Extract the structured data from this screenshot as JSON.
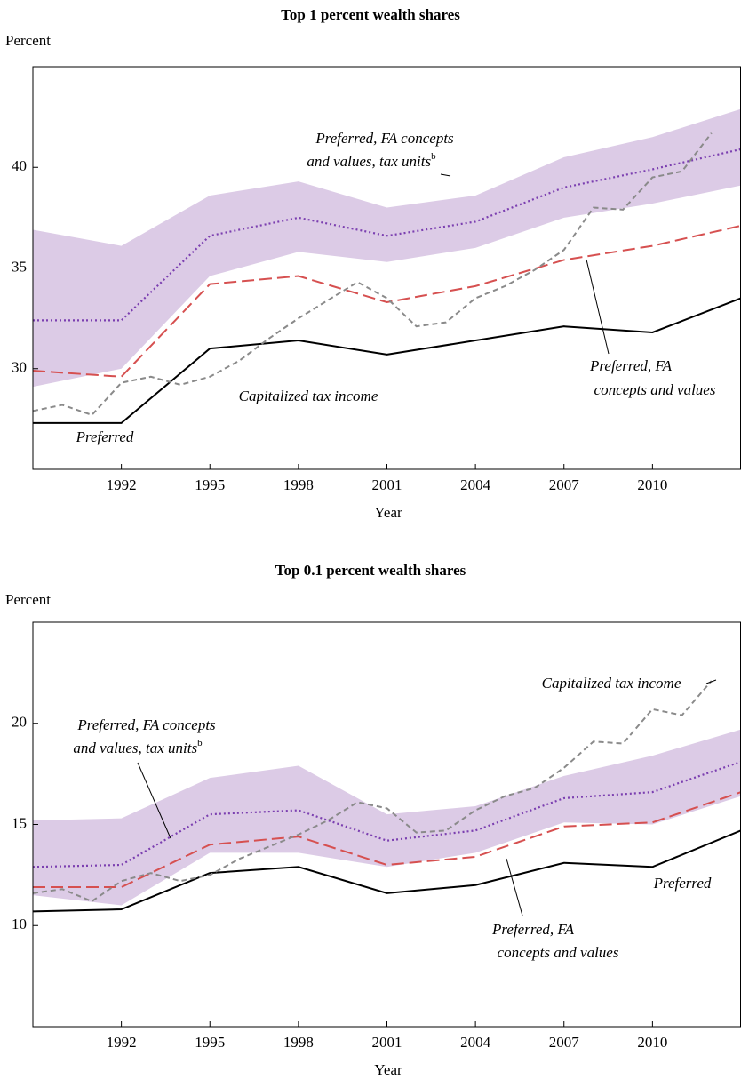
{
  "chart_data": [
    {
      "type": "line",
      "title": "Top 1 percent wealth shares",
      "ylabel": "Percent",
      "xlabel": "Year",
      "x": [
        1989,
        1992,
        1995,
        1998,
        2001,
        2004,
        2007,
        2010,
        2013
      ],
      "xlim": [
        1989,
        2013
      ],
      "ylim": [
        25,
        45
      ],
      "xticks": [
        1992,
        1995,
        1998,
        2001,
        2004,
        2007,
        2010
      ],
      "yticks": [
        30,
        35,
        40
      ],
      "series": [
        {
          "label": [
            "Preferred"
          ],
          "color": "#000000",
          "style": "solid",
          "values": [
            27.3,
            27.3,
            31.0,
            31.4,
            30.7,
            31.4,
            32.1,
            31.8,
            33.5
          ]
        },
        {
          "label": [
            "Preferred, FA",
            "concepts and values"
          ],
          "color": "#d65050",
          "style": "dashed",
          "values": [
            29.9,
            29.6,
            34.2,
            34.6,
            33.3,
            34.1,
            35.4,
            36.1,
            37.1
          ]
        },
        {
          "label": [
            "Preferred, FA concepts",
            "and values, tax units"
          ],
          "superscript": "b",
          "color": "#7b3fb0",
          "style": "dotted",
          "values": [
            32.4,
            32.4,
            36.6,
            37.5,
            36.6,
            37.3,
            39.0,
            39.9,
            40.9
          ],
          "band_color": "#dccbe6",
          "upper": [
            36.9,
            36.1,
            38.6,
            39.3,
            38.0,
            38.6,
            40.5,
            41.5,
            42.9
          ],
          "lower": [
            29.1,
            30.0,
            34.6,
            35.8,
            35.3,
            36.0,
            37.5,
            38.2,
            39.1
          ]
        },
        {
          "label": [
            "Capitalized tax income"
          ],
          "color": "#8a8a8a",
          "style": "shortdash",
          "x": [
            1989,
            1990,
            1991,
            1992,
            1993,
            1994,
            1995,
            1996,
            1997,
            1998,
            1999,
            2000,
            2001,
            2002,
            2003,
            2004,
            2005,
            2006,
            2007,
            2008,
            2009,
            2010,
            2011,
            2012
          ],
          "values": [
            27.9,
            28.2,
            27.7,
            29.3,
            29.6,
            29.2,
            29.6,
            30.4,
            31.5,
            32.5,
            33.4,
            34.3,
            33.5,
            32.1,
            32.3,
            33.5,
            34.1,
            34.9,
            35.9,
            38.0,
            37.9,
            39.5,
            39.8,
            41.7
          ]
        }
      ]
    },
    {
      "type": "line",
      "title": "Top 0.1 percent wealth shares",
      "ylabel": "Percent",
      "xlabel": "Year",
      "x": [
        1989,
        1992,
        1995,
        1998,
        2001,
        2004,
        2007,
        2010,
        2013
      ],
      "xlim": [
        1989,
        2013
      ],
      "ylim": [
        5,
        25
      ],
      "xticks": [
        1992,
        1995,
        1998,
        2001,
        2004,
        2007,
        2010
      ],
      "yticks": [
        10,
        15,
        20
      ],
      "series": [
        {
          "label": [
            "Preferred"
          ],
          "color": "#000000",
          "style": "solid",
          "values": [
            10.7,
            10.8,
            12.6,
            12.9,
            11.6,
            12.0,
            13.1,
            12.9,
            14.7
          ]
        },
        {
          "label": [
            "Preferred, FA",
            "concepts and values"
          ],
          "color": "#d65050",
          "style": "dashed",
          "values": [
            11.9,
            11.9,
            14.0,
            14.4,
            13.0,
            13.4,
            14.9,
            15.1,
            16.6
          ]
        },
        {
          "label": [
            "Preferred, FA concepts",
            "and values, tax units"
          ],
          "superscript": "b",
          "color": "#7b3fb0",
          "style": "dotted",
          "values": [
            12.9,
            13.0,
            15.5,
            15.7,
            14.2,
            14.7,
            16.3,
            16.6,
            18.1
          ],
          "band_color": "#dccbe6",
          "upper": [
            15.2,
            15.3,
            17.3,
            17.9,
            15.5,
            15.9,
            17.4,
            18.4,
            19.7
          ],
          "lower": [
            11.5,
            11.0,
            13.6,
            13.6,
            12.9,
            13.6,
            15.1,
            15.0,
            16.4
          ]
        },
        {
          "label": [
            "Capitalized tax income"
          ],
          "color": "#8a8a8a",
          "style": "shortdash",
          "x": [
            1989,
            1990,
            1991,
            1992,
            1993,
            1994,
            1995,
            1996,
            1997,
            1998,
            1999,
            2000,
            2001,
            2002,
            2003,
            2004,
            2005,
            2006,
            2007,
            2008,
            2009,
            2010,
            2011,
            2012
          ],
          "values": [
            11.6,
            11.8,
            11.2,
            12.2,
            12.6,
            12.2,
            12.5,
            13.3,
            13.9,
            14.5,
            15.2,
            16.1,
            15.8,
            14.6,
            14.7,
            15.7,
            16.4,
            16.8,
            17.8,
            19.1,
            19.0,
            20.7,
            20.4,
            22.1
          ]
        }
      ]
    }
  ]
}
